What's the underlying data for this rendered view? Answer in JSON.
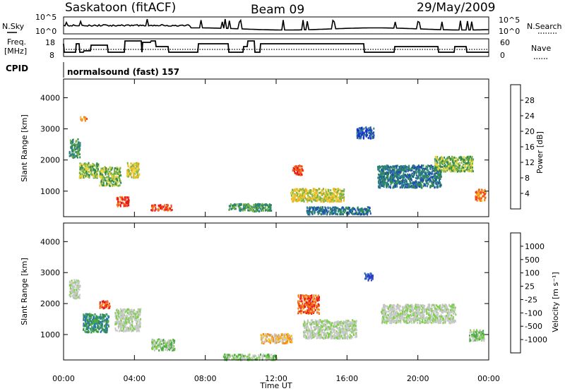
{
  "header": {
    "station": "Saskatoon (fitACF)",
    "beam": "Beam 09",
    "date": "29/May/2009"
  },
  "side_labels": {
    "nsky": "N.Sky",
    "nsearch": "N.Search",
    "freq_line1": "Freq.",
    "freq_line2": "[MHz]",
    "nave": "Nave",
    "cpid": "CPID",
    "cpid_value": "normalsound (fast) 157"
  },
  "noise_panel": {
    "left_ticks": [
      "10^5",
      "10^0"
    ],
    "right_ticks": [
      "10^5",
      "10^0"
    ]
  },
  "freq_panel": {
    "left_ticks": [
      "18",
      "8"
    ],
    "right_ticks": [
      "60",
      "0"
    ]
  },
  "axes": {
    "ylabel": "Slant Range [km]",
    "xlabel": "Time UT",
    "y_ticks": [
      "4000",
      "3000",
      "2000",
      "1000"
    ],
    "x_ticks": [
      "00:00",
      "04:00",
      "08:00",
      "12:00",
      "16:00",
      "20:00",
      "00:00"
    ]
  },
  "power_scale": {
    "label": "Power [dB]",
    "ticks": [
      "28",
      "24",
      "20",
      "16",
      "12",
      "8",
      "4"
    ],
    "colors": [
      "#e8141a",
      "#f0471c",
      "#f47a1e",
      "#f4b51f",
      "#e6d33a",
      "#79b247",
      "#2e8a50",
      "#2b7f88",
      "#1f4fb0",
      "#1a2ad8"
    ]
  },
  "velocity_scale": {
    "label": "Velocity [m s⁻¹]",
    "ticks": [
      "1000",
      "500",
      "100",
      "25",
      "-25",
      "-100",
      "-500",
      "-1000"
    ],
    "colors": [
      "#2a3fcc",
      "#2a7ab0",
      "#2e8a5a",
      "#4caa44",
      "#7ed04c",
      "#c8c8c8",
      "#c8c8c8",
      "#f4c21f",
      "#f48c1e",
      "#f05a1c",
      "#e8141a"
    ]
  },
  "chart_data": {
    "type": "heatmap",
    "x_range_hours": [
      0,
      24
    ],
    "y_range_km": [
      180,
      4600
    ],
    "gap_hours": [
      6.8,
      9.0
    ],
    "power_clusters": [
      {
        "t": 0.6,
        "r": 2400,
        "dt": 0.5,
        "dr": 500,
        "c": 6
      },
      {
        "t": 1.4,
        "r": 1700,
        "dt": 0.9,
        "dr": 400,
        "c": 5
      },
      {
        "t": 2.6,
        "r": 1500,
        "dt": 1.0,
        "dr": 500,
        "c": 5
      },
      {
        "t": 3.3,
        "r": 700,
        "dt": 0.6,
        "dr": 250,
        "c": 1
      },
      {
        "t": 3.9,
        "r": 1700,
        "dt": 0.6,
        "dr": 400,
        "c": 4
      },
      {
        "t": 1.1,
        "r": 3350,
        "dt": 0.3,
        "dr": 100,
        "c": 2
      },
      {
        "t": 5.5,
        "r": 500,
        "dt": 1.0,
        "dr": 150,
        "c": 1
      },
      {
        "t": 10.5,
        "r": 500,
        "dt": 2.0,
        "dr": 200,
        "c": 6
      },
      {
        "t": 13.2,
        "r": 1700,
        "dt": 0.5,
        "dr": 250,
        "c": 1
      },
      {
        "t": 14.3,
        "r": 900,
        "dt": 2.5,
        "dr": 350,
        "c": 4
      },
      {
        "t": 15.5,
        "r": 400,
        "dt": 3.0,
        "dr": 200,
        "c": 7
      },
      {
        "t": 19.5,
        "r": 1500,
        "dt": 3.0,
        "dr": 600,
        "c": 7
      },
      {
        "t": 22.0,
        "r": 1900,
        "dt": 1.8,
        "dr": 400,
        "c": 5
      },
      {
        "t": 23.5,
        "r": 900,
        "dt": 0.5,
        "dr": 300,
        "c": 2
      },
      {
        "t": 17.0,
        "r": 2900,
        "dt": 0.8,
        "dr": 300,
        "c": 8
      }
    ],
    "velocity_clusters": [
      {
        "t": 0.6,
        "r": 2500,
        "dt": 0.5,
        "dr": 500,
        "c": 5
      },
      {
        "t": 1.8,
        "r": 1400,
        "dt": 1.2,
        "dr": 500,
        "c": 2
      },
      {
        "t": 2.3,
        "r": 2000,
        "dt": 0.5,
        "dr": 200,
        "c": 9
      },
      {
        "t": 3.6,
        "r": 1500,
        "dt": 1.2,
        "dr": 600,
        "c": 5
      },
      {
        "t": 5.6,
        "r": 700,
        "dt": 1.1,
        "dr": 300,
        "c": 4
      },
      {
        "t": 13.8,
        "r": 2000,
        "dt": 1.0,
        "dr": 500,
        "c": 9
      },
      {
        "t": 12.0,
        "r": 900,
        "dt": 1.5,
        "dr": 250,
        "c": 7
      },
      {
        "t": 10.5,
        "r": 300,
        "dt": 2.5,
        "dr": 150,
        "c": 4
      },
      {
        "t": 15.0,
        "r": 1200,
        "dt": 2.5,
        "dr": 500,
        "c": 5
      },
      {
        "t": 20.0,
        "r": 1700,
        "dt": 3.5,
        "dr": 500,
        "c": 5
      },
      {
        "t": 23.3,
        "r": 1000,
        "dt": 0.7,
        "dr": 300,
        "c": 4
      },
      {
        "t": 17.2,
        "r": 2900,
        "dt": 0.4,
        "dr": 200,
        "c": 0
      }
    ]
  }
}
